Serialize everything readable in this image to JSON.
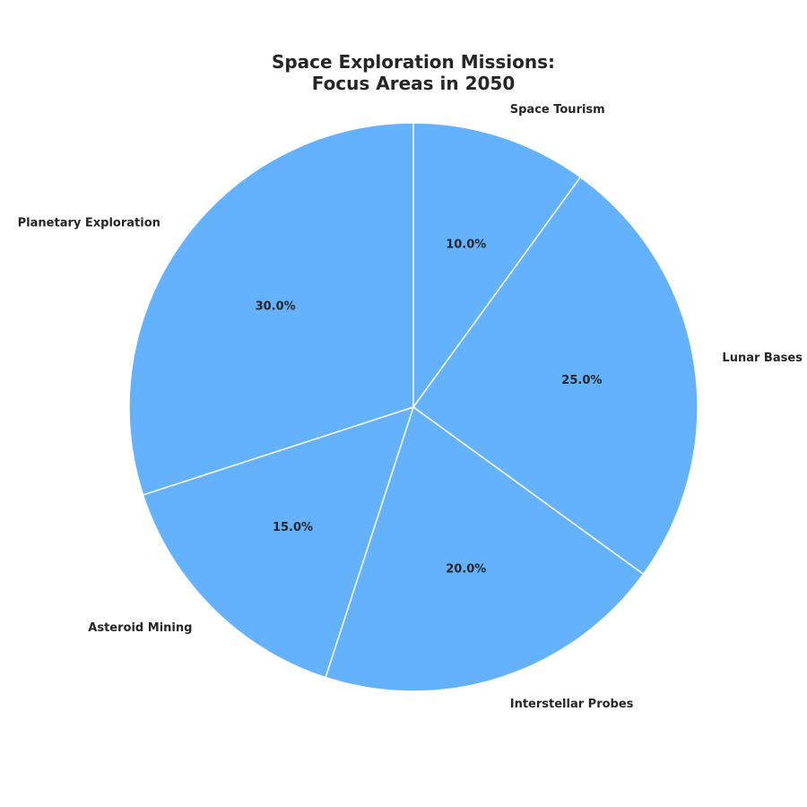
{
  "chart_data": {
    "type": "pie",
    "title_lines": [
      "Space Exploration Missions:",
      "Focus Areas in 2050"
    ],
    "categories": [
      "Space Tourism",
      "Lunar Bases",
      "Interstellar Probes",
      "Asteroid Mining",
      "Planetary Exploration"
    ],
    "values": [
      10.0,
      25.0,
      20.0,
      15.0,
      30.0
    ],
    "percent_labels": [
      "10.0%",
      "25.0%",
      "20.0%",
      "15.0%",
      "30.0%"
    ],
    "start_angle_deg": 90,
    "direction": "clockwise",
    "slice_color": "#64b2fe",
    "edge_color": "#ffffff",
    "legend": "none"
  }
}
